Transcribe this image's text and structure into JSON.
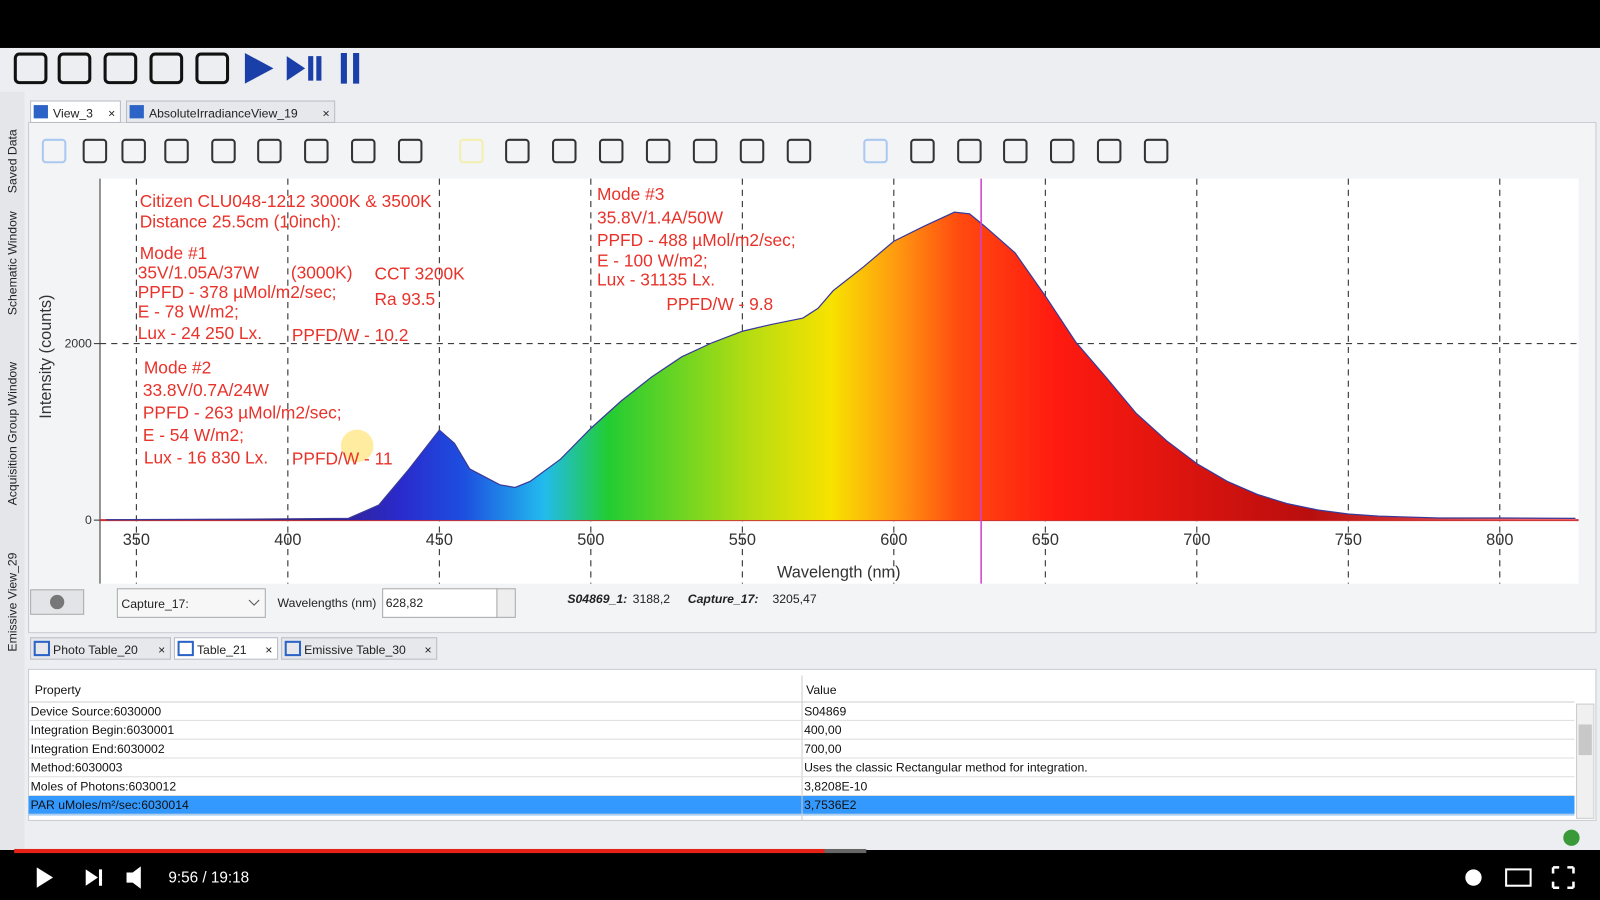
{
  "side_tabs": [
    "Saved Data",
    "Schematic Window",
    "Acquisition Group Window",
    "Emissive View_29"
  ],
  "view_tabs": [
    "View_3",
    "AbsoluteIrradianceView_19"
  ],
  "chart_data": {
    "type": "area",
    "xlabel": "Wavelength (nm)",
    "ylabel": "Intensity (counts)",
    "xlim": [
      338,
      826
    ],
    "ylim": [
      -720,
      3870
    ],
    "xticks": [
      350,
      400,
      450,
      500,
      550,
      600,
      650,
      700,
      750,
      800
    ],
    "yticks": [
      0,
      2000
    ],
    "grid": true,
    "x": [
      340,
      380,
      420,
      430,
      440,
      450,
      455,
      460,
      470,
      475,
      480,
      490,
      500,
      510,
      520,
      530,
      540,
      550,
      560,
      570,
      575,
      580,
      590,
      600,
      610,
      620,
      625,
      630,
      640,
      650,
      660,
      670,
      680,
      690,
      700,
      710,
      720,
      730,
      740,
      750,
      760,
      780,
      800,
      825
    ],
    "values": [
      5,
      10,
      20,
      170,
      580,
      1020,
      870,
      580,
      400,
      370,
      440,
      690,
      1040,
      1350,
      1620,
      1850,
      2010,
      2140,
      2220,
      2290,
      2400,
      2600,
      2870,
      3160,
      3330,
      3490,
      3470,
      3330,
      3030,
      2540,
      2020,
      1620,
      1210,
      900,
      640,
      440,
      290,
      185,
      115,
      70,
      45,
      25,
      25,
      20
    ],
    "cursor": {
      "value": 628.82,
      "label": "628,82"
    },
    "annotations": [
      "Citizen CLU048-1212 3000K & 3500K",
      "Distance 25.5cm (10inch):",
      "Mode #1",
      "35V/1.05A/37W",
      "(3000K)",
      "CCT 3200K",
      "PPFD - 378 µMol/m2/sec;",
      "Ra 93.5",
      "E - 78 W/m2;",
      "Lux - 24 250 Lx.",
      "PPFD/W - 10.2",
      "Mode #2",
      "33.8V/0.7A/24W",
      "PPFD - 263 µMol/m2/sec;",
      "E - 54 W/m2;",
      "Lux - 16 830 Lx.",
      "PPFD/W - 11",
      "Mode #3",
      "35.8V/1.4A/50W",
      "PPFD - 488 µMol/m2/sec;",
      "E - 100 W/m2;",
      "Lux - 31135 Lx.",
      "PPFD/W - 9.8"
    ]
  },
  "controls": {
    "dropdown": "Capture_17:",
    "wavelength_label": "Wavelengths (nm)",
    "readout": [
      {
        "name": "S04869_1:",
        "value": "3188,2"
      },
      {
        "name": "Capture_17:",
        "value": "3205,47"
      }
    ]
  },
  "table_tabs": [
    "Photo Table_20",
    "Table_21",
    "Emissive Table_30"
  ],
  "table": {
    "header": [
      "Property",
      "Value"
    ],
    "rows": [
      [
        "Device Source:6030000",
        "S04869"
      ],
      [
        "Integration Begin:6030001",
        "400,00"
      ],
      [
        "Integration End:6030002",
        "700,00"
      ],
      [
        "Method:6030003",
        "Uses the classic Rectangular method for integration."
      ],
      [
        "Moles of Photons:6030012",
        "3,8208E-10"
      ],
      [
        "PAR uMoles/m²/sec:6030014",
        "3,7536E2"
      ]
    ]
  },
  "player": {
    "time": "9:56 / 19:18"
  }
}
